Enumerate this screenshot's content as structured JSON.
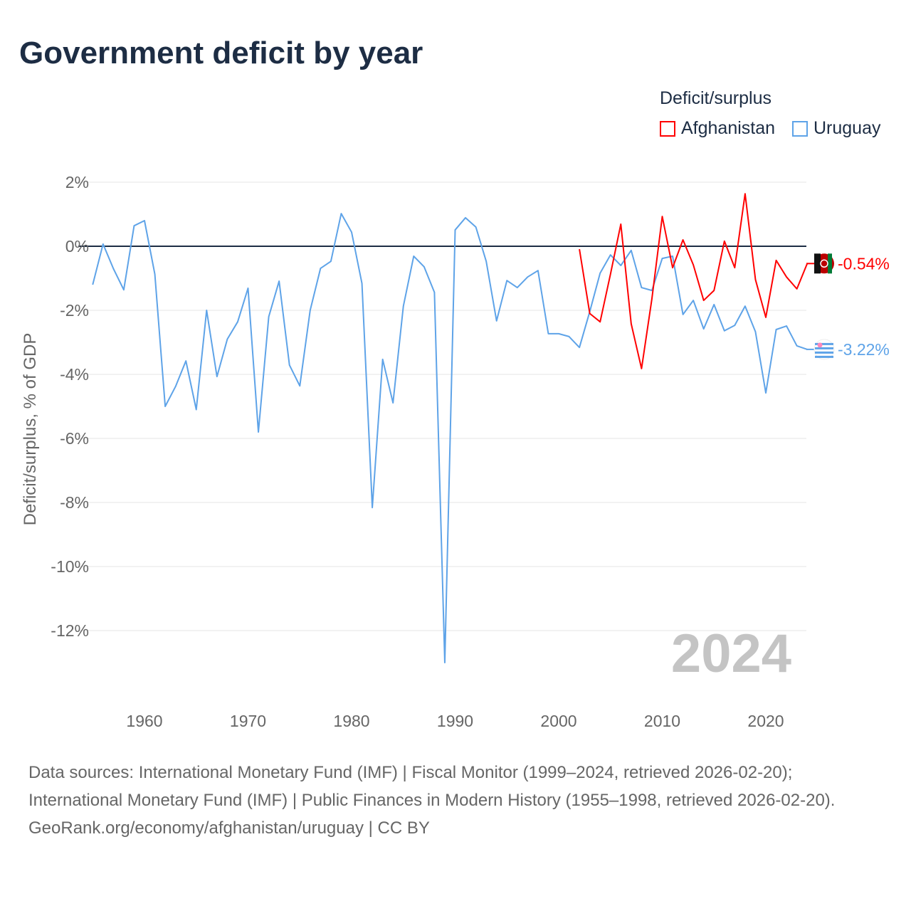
{
  "title": "Government deficit by year",
  "legend": {
    "title": "Deficit/surplus",
    "items": [
      "Afghanistan",
      "Uruguay"
    ]
  },
  "colors": {
    "Afghanistan": "#ff0000",
    "Uruguay": "#5ea3e8"
  },
  "footer": {
    "sources": "Data sources: International Monetary Fund (IMF) | Fiscal Monitor (1999–2024, retrieved 2026-02-20); International Monetary Fund (IMF) | Public Finances in Modern History (1955–1998, retrieved 2026-02-20).",
    "credit": "GeoRank.org/economy/afghanistan/uruguay | CC BY"
  },
  "chart_data": {
    "type": "line",
    "title": "Government deficit by year",
    "ylabel": "Deficit/surplus, % of GDP",
    "year_watermark": "2024",
    "ylim": [
      -14.2,
      2.5
    ],
    "xlim": [
      1954,
      2024
    ],
    "yticks": [
      2,
      0,
      -2,
      -4,
      -6,
      -8,
      -10,
      -12
    ],
    "ytick_labels": [
      "2%",
      "0%",
      "-2%",
      "-4%",
      "-6%",
      "-8%",
      "-10%",
      "-12%"
    ],
    "xticks": [
      1960,
      1970,
      1980,
      1990,
      2000,
      2010,
      2020
    ],
    "series": [
      {
        "name": "Uruguay",
        "end_label": "-3.22%",
        "start": 1955,
        "values": [
          -1.2,
          0.07,
          -0.7,
          -1.36,
          0.64,
          0.8,
          -0.87,
          -5.0,
          -4.38,
          -3.58,
          -5.1,
          -2.0,
          -4.07,
          -2.9,
          -2.36,
          -1.31,
          -5.8,
          -2.2,
          -1.09,
          -3.71,
          -4.36,
          -2.0,
          -0.69,
          -0.47,
          1.02,
          0.44,
          -1.16,
          -8.16,
          -3.53,
          -4.89,
          -1.87,
          -0.31,
          -0.64,
          -1.44,
          -13.0,
          0.51,
          0.89,
          0.6,
          -0.47,
          -2.33,
          -1.07,
          -1.29,
          -0.96,
          -0.76,
          -2.73,
          -2.73,
          -2.82,
          -3.16,
          -2.04,
          -0.84,
          -0.27,
          -0.6,
          -0.13,
          -1.29,
          -1.38,
          -0.38,
          -0.31,
          -2.13,
          -1.69,
          -2.58,
          -1.82,
          -2.64,
          -2.47,
          -1.87,
          -2.67,
          -4.58,
          -2.6,
          -2.49,
          -3.11,
          -3.22
        ]
      },
      {
        "name": "Afghanistan",
        "end_label": "-0.54%",
        "start": 2002,
        "values": [
          -0.09,
          -2.1,
          -2.36,
          -0.87,
          0.69,
          -2.42,
          -3.82,
          -1.64,
          0.93,
          -0.67,
          0.2,
          -0.58,
          -1.69,
          -1.38,
          0.16,
          -0.67,
          1.64,
          -1.04,
          -2.22,
          -0.44,
          -0.96,
          -1.33,
          -0.54
        ]
      }
    ]
  }
}
